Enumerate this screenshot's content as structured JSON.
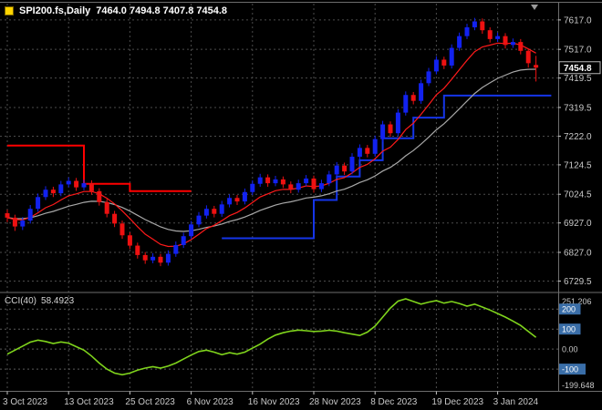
{
  "header": {
    "symbol": "SPI200.fs,Daily",
    "ohlc": "7464.0 7494.8 7407.8 7454.8"
  },
  "colors": {
    "background": "#000000",
    "grid": "#4c4c4c",
    "bull": "#1222f0",
    "bear": "#ee1111",
    "ma_fast": "#ff1a1a",
    "ma_slow": "#a8a8a8",
    "trail_up": "#1535e8",
    "trail_down": "#ff0000",
    "cci_line": "#7fd41c",
    "axis_text": "#c8c8c8",
    "level_box": "#3a6ea8",
    "level_box_text": "#ffffff",
    "separator": "#6e6e6e",
    "price_tag_bg": "#000000",
    "price_tag_border": "#b8b8b8",
    "price_tag_text": "#ffffff"
  },
  "chart_data": {
    "type": "candlestick",
    "symbol": "SPI200.fs",
    "timeframe": "Daily",
    "ohlc_current": {
      "open": 7464.0,
      "high": 7494.8,
      "low": 7407.8,
      "close": 7454.8
    },
    "price_current_text": "7454.8",
    "price_range": [
      6700,
      7660
    ],
    "price_axis_labels": [
      "7617.0",
      "7517.0",
      "7419.5",
      "7319.5",
      "7222.0",
      "7124.5",
      "7024.5",
      "6927.0",
      "6827.0",
      "6729.5"
    ],
    "time_ticks": [
      {
        "index": 0,
        "label": "3 Oct 2023"
      },
      {
        "index": 8,
        "label": "13 Oct 2023"
      },
      {
        "index": 16,
        "label": "25 Oct 2023"
      },
      {
        "index": 24,
        "label": "6 Nov 2023"
      },
      {
        "index": 32,
        "label": "16 Nov 2023"
      },
      {
        "index": 40,
        "label": "28 Nov 2023"
      },
      {
        "index": 48,
        "label": "8 Dec 2023"
      },
      {
        "index": 56,
        "label": "19 Dec 2023"
      },
      {
        "index": 64,
        "label": "3 Jan 2024"
      }
    ],
    "candles": [
      [
        6960,
        6972,
        6930,
        6945
      ],
      [
        6945,
        6955,
        6900,
        6915
      ],
      [
        6915,
        6947,
        6903,
        6935
      ],
      [
        6935,
        6988,
        6925,
        6975
      ],
      [
        6975,
        7027,
        6965,
        7015
      ],
      [
        7015,
        7052,
        7005,
        7040
      ],
      [
        7040,
        7050,
        7015,
        7028
      ],
      [
        7028,
        7070,
        7018,
        7058
      ],
      [
        7058,
        7082,
        7048,
        7070
      ],
      [
        7070,
        7080,
        7036,
        7048
      ],
      [
        7048,
        7074,
        7038,
        7062
      ],
      [
        7062,
        7072,
        7023,
        7035
      ],
      [
        7035,
        7045,
        6986,
        6998
      ],
      [
        6998,
        7008,
        6946,
        6958
      ],
      [
        6958,
        6968,
        6913,
        6925
      ],
      [
        6925,
        6935,
        6873,
        6885
      ],
      [
        6885,
        6895,
        6838,
        6850
      ],
      [
        6850,
        6860,
        6806,
        6818
      ],
      [
        6818,
        6828,
        6788,
        6800
      ],
      [
        6800,
        6824,
        6790,
        6812
      ],
      [
        6812,
        6822,
        6780,
        6792
      ],
      [
        6792,
        6834,
        6782,
        6822
      ],
      [
        6822,
        6864,
        6812,
        6852
      ],
      [
        6852,
        6894,
        6842,
        6882
      ],
      [
        6882,
        6934,
        6872,
        6922
      ],
      [
        6922,
        6964,
        6912,
        6952
      ],
      [
        6952,
        6987,
        6942,
        6975
      ],
      [
        6975,
        6985,
        6946,
        6958
      ],
      [
        6958,
        7002,
        6948,
        6990
      ],
      [
        6990,
        7024,
        6980,
        7012
      ],
      [
        7012,
        7022,
        6988,
        7000
      ],
      [
        7000,
        7044,
        6990,
        7032
      ],
      [
        7032,
        7072,
        7022,
        7060
      ],
      [
        7060,
        7094,
        7050,
        7082
      ],
      [
        7082,
        7092,
        7050,
        7062
      ],
      [
        7062,
        7087,
        7052,
        7075
      ],
      [
        7075,
        7085,
        7046,
        7058
      ],
      [
        7058,
        7068,
        7028,
        7040
      ],
      [
        7040,
        7074,
        7030,
        7062
      ],
      [
        7062,
        7090,
        7052,
        7078
      ],
      [
        7078,
        7088,
        7030,
        7042
      ],
      [
        7042,
        7074,
        7032,
        7062
      ],
      [
        7062,
        7104,
        7052,
        7092
      ],
      [
        7092,
        7134,
        7082,
        7122
      ],
      [
        7122,
        7132,
        7090,
        7102
      ],
      [
        7102,
        7164,
        7092,
        7152
      ],
      [
        7152,
        7194,
        7142,
        7182
      ],
      [
        7182,
        7192,
        7150,
        7162
      ],
      [
        7162,
        7224,
        7152,
        7212
      ],
      [
        7212,
        7274,
        7202,
        7262
      ],
      [
        7262,
        7272,
        7220,
        7232
      ],
      [
        7232,
        7314,
        7222,
        7302
      ],
      [
        7302,
        7374,
        7292,
        7362
      ],
      [
        7362,
        7372,
        7330,
        7342
      ],
      [
        7342,
        7414,
        7332,
        7402
      ],
      [
        7402,
        7454,
        7392,
        7442
      ],
      [
        7442,
        7494,
        7432,
        7482
      ],
      [
        7482,
        7492,
        7450,
        7462
      ],
      [
        7462,
        7534,
        7452,
        7522
      ],
      [
        7522,
        7574,
        7512,
        7562
      ],
      [
        7562,
        7604,
        7552,
        7592
      ],
      [
        7592,
        7624,
        7582,
        7612
      ],
      [
        7612,
        7622,
        7570,
        7582
      ],
      [
        7582,
        7592,
        7540,
        7552
      ],
      [
        7552,
        7574,
        7542,
        7562
      ],
      [
        7562,
        7572,
        7520,
        7532
      ],
      [
        7532,
        7554,
        7522,
        7542
      ],
      [
        7542,
        7552,
        7500,
        7512
      ],
      [
        7512,
        7520,
        7455,
        7470
      ],
      [
        7464,
        7494.8,
        7407.8,
        7454.8
      ]
    ],
    "overlays": {
      "ema_fast": {
        "period": 8
      },
      "ema_slow": {
        "period": 20
      },
      "trail_down": {
        "points": [
          [
            0,
            7190
          ],
          [
            10,
            7060
          ],
          [
            16,
            7035
          ]
        ],
        "end_index": 24
      },
      "trail_up": {
        "points": [
          [
            28,
            6875
          ],
          [
            40,
            7005
          ],
          [
            43,
            7085
          ],
          [
            46,
            7140
          ],
          [
            49,
            7215
          ],
          [
            53,
            7285
          ],
          [
            57,
            7360
          ]
        ],
        "end_index": 71
      }
    },
    "indicator_panel": {
      "label": "CCI(40)",
      "current_value": "58.4923",
      "range": [
        -199.648,
        251.206
      ],
      "axis_labels": [
        {
          "value": 251.206,
          "text": "251.206",
          "boxed": false,
          "level": false
        },
        {
          "value": 200,
          "text": "200",
          "boxed": true,
          "level": true
        },
        {
          "value": 100,
          "text": "100",
          "boxed": true,
          "level": true
        },
        {
          "value": 0,
          "text": "0.00",
          "boxed": false,
          "level": true
        },
        {
          "value": -100,
          "text": "-100",
          "boxed": true,
          "level": true
        },
        {
          "value": -199.648,
          "text": "-199.648",
          "boxed": false,
          "level": false
        }
      ],
      "values": [
        -25,
        -5,
        15,
        35,
        45,
        38,
        28,
        36,
        30,
        12,
        -5,
        -35,
        -70,
        -100,
        -120,
        -128,
        -120,
        -105,
        -95,
        -88,
        -95,
        -85,
        -70,
        -50,
        -30,
        -12,
        -5,
        -15,
        -28,
        -18,
        -25,
        -15,
        5,
        25,
        50,
        70,
        82,
        90,
        95,
        92,
        88,
        90,
        94,
        90,
        82,
        75,
        68,
        85,
        115,
        160,
        205,
        240,
        251,
        238,
        225,
        235,
        242,
        230,
        238,
        228,
        215,
        225,
        210,
        195,
        178,
        160,
        140,
        118,
        88,
        58.5
      ]
    }
  }
}
